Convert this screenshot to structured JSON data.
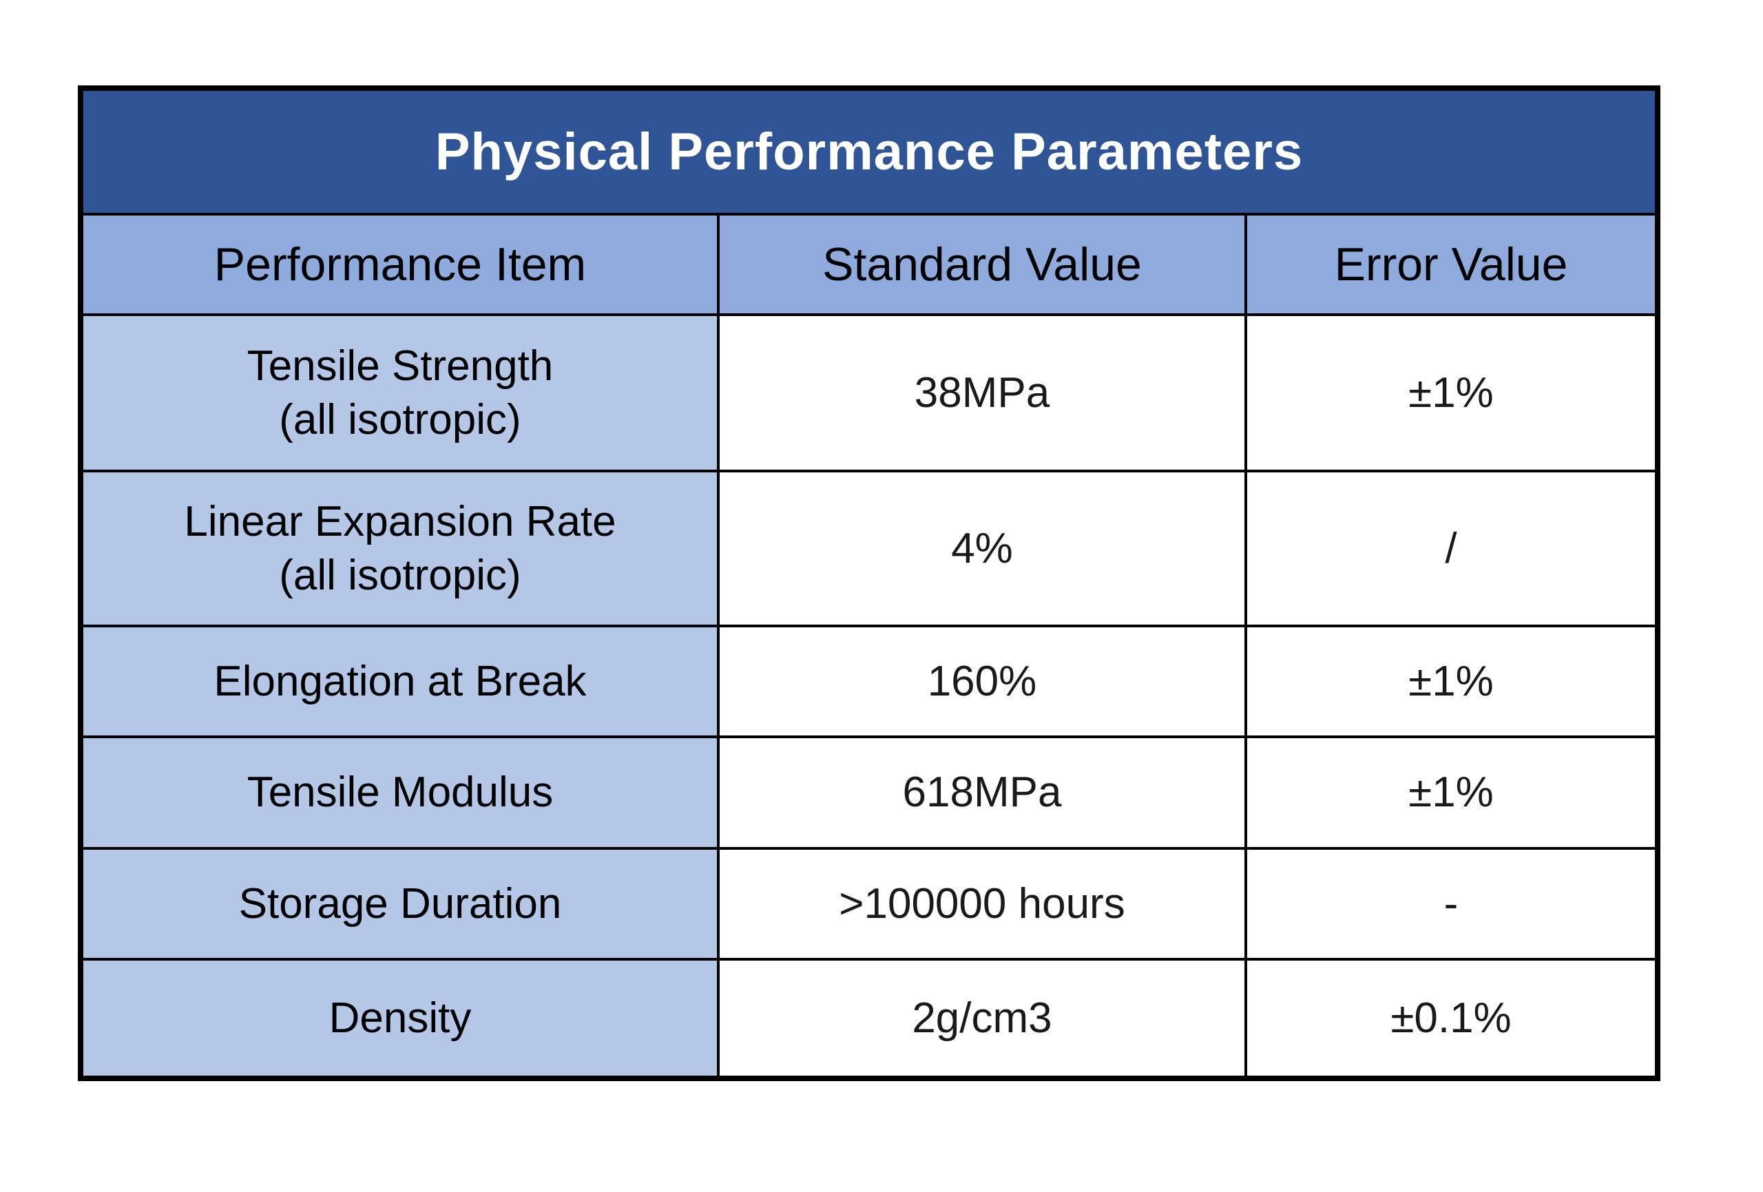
{
  "table": {
    "title": "Physical Performance Parameters",
    "columns": [
      "Performance Item",
      "Standard Value",
      "Error Value"
    ],
    "rows": [
      {
        "item": "Tensile Strength",
        "item_sub": "(all isotropic)",
        "standard": "38MPa",
        "error": "±1%"
      },
      {
        "item": "Linear Expansion Rate",
        "item_sub": "(all isotropic)",
        "standard": "4%",
        "error": "/"
      },
      {
        "item": "Elongation at Break",
        "item_sub": "",
        "standard": "160%",
        "error": "±1%"
      },
      {
        "item": "Tensile Modulus",
        "item_sub": "",
        "standard": "618MPa",
        "error": "±1%"
      },
      {
        "item": "Storage Duration",
        "item_sub": "",
        "standard": ">100000 hours",
        "error": "-"
      },
      {
        "item": "Density",
        "item_sub": "",
        "standard": "2g/cm3",
        "error": "±0.1%"
      }
    ],
    "colors": {
      "title_bg": "#2F5597",
      "title_text": "#FFFFFF",
      "header_bg": "#8FAADC",
      "item_column_bg": "#B4C7E7",
      "border": "#000000",
      "cell_bg": "#FFFFFF"
    }
  },
  "chart_data": {
    "type": "table",
    "title": "Physical Performance Parameters",
    "columns": [
      "Performance Item",
      "Standard Value",
      "Error Value"
    ],
    "rows": [
      [
        "Tensile Strength (all isotropic)",
        "38MPa",
        "±1%"
      ],
      [
        "Linear Expansion Rate (all isotropic)",
        "4%",
        "/"
      ],
      [
        "Elongation at Break",
        "160%",
        "±1%"
      ],
      [
        "Tensile Modulus",
        "618MPa",
        "±1%"
      ],
      [
        "Storage Duration",
        ">100000 hours",
        "-"
      ],
      [
        "Density",
        "2g/cm3",
        "±0.1%"
      ]
    ],
    "legend_position": "none",
    "grid": true
  }
}
